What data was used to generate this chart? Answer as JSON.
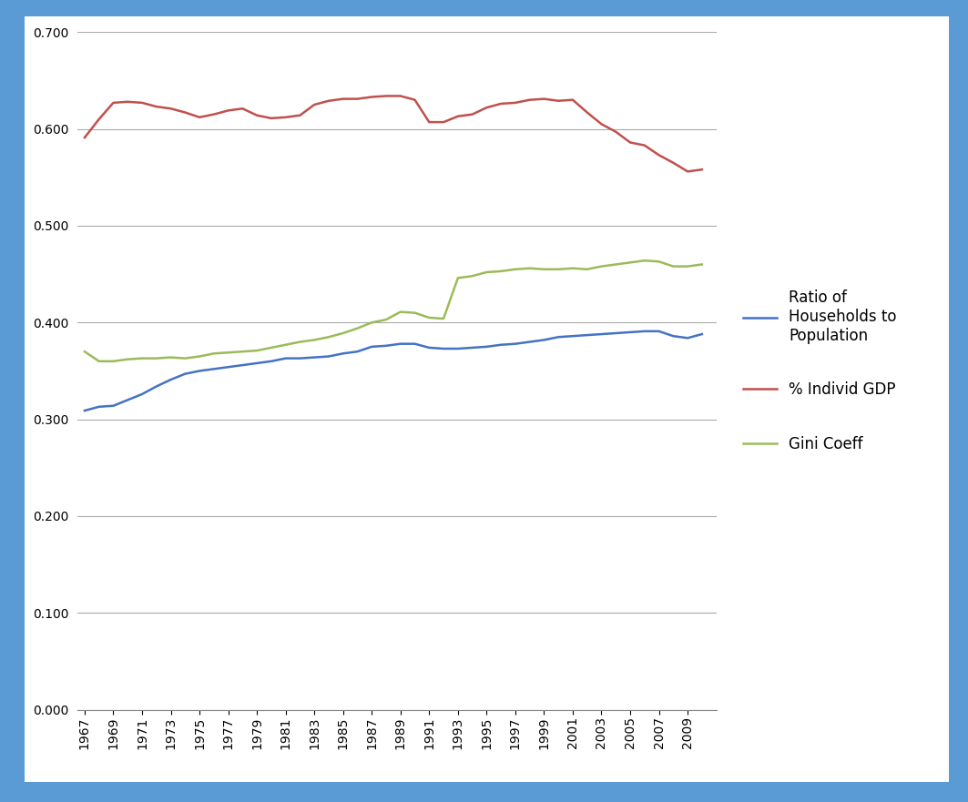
{
  "years": [
    1967,
    1968,
    1969,
    1970,
    1971,
    1972,
    1973,
    1974,
    1975,
    1976,
    1977,
    1978,
    1979,
    1980,
    1981,
    1982,
    1983,
    1984,
    1985,
    1986,
    1987,
    1988,
    1989,
    1990,
    1991,
    1992,
    1993,
    1994,
    1995,
    1996,
    1997,
    1998,
    1999,
    2000,
    2001,
    2002,
    2003,
    2004,
    2005,
    2006,
    2007,
    2008,
    2009,
    2010
  ],
  "ratio_households": [
    0.309,
    0.313,
    0.314,
    0.32,
    0.326,
    0.334,
    0.341,
    0.347,
    0.35,
    0.352,
    0.354,
    0.356,
    0.358,
    0.36,
    0.363,
    0.363,
    0.364,
    0.365,
    0.368,
    0.37,
    0.375,
    0.376,
    0.378,
    0.378,
    0.374,
    0.373,
    0.373,
    0.374,
    0.375,
    0.377,
    0.378,
    0.38,
    0.382,
    0.385,
    0.386,
    0.387,
    0.388,
    0.389,
    0.39,
    0.391,
    0.391,
    0.386,
    0.384,
    0.388
  ],
  "pct_individ_gdp": [
    0.591,
    0.61,
    0.627,
    0.628,
    0.627,
    0.623,
    0.621,
    0.617,
    0.612,
    0.615,
    0.619,
    0.621,
    0.614,
    0.611,
    0.612,
    0.614,
    0.625,
    0.629,
    0.631,
    0.631,
    0.633,
    0.634,
    0.634,
    0.63,
    0.607,
    0.607,
    0.613,
    0.615,
    0.622,
    0.626,
    0.627,
    0.63,
    0.631,
    0.629,
    0.63,
    0.617,
    0.605,
    0.597,
    0.586,
    0.583,
    0.573,
    0.565,
    0.556,
    0.558
  ],
  "gini_coeff": [
    0.37,
    0.36,
    0.36,
    0.362,
    0.363,
    0.363,
    0.364,
    0.363,
    0.365,
    0.368,
    0.369,
    0.37,
    0.371,
    0.374,
    0.377,
    0.38,
    0.382,
    0.385,
    0.389,
    0.394,
    0.4,
    0.403,
    0.411,
    0.41,
    0.405,
    0.404,
    0.446,
    0.448,
    0.452,
    0.453,
    0.455,
    0.456,
    0.455,
    0.455,
    0.456,
    0.455,
    0.458,
    0.46,
    0.462,
    0.464,
    0.463,
    0.458,
    0.458,
    0.46
  ],
  "line_color_households": "#4472C4",
  "line_color_gdp": "#C0504D",
  "line_color_gini": "#9BBB59",
  "background_outer": "#5B9BD5",
  "background_inner": "#FFFFFF",
  "ylim": [
    0.0,
    0.7
  ],
  "yticks": [
    0.0,
    0.1,
    0.2,
    0.3,
    0.4,
    0.5,
    0.6,
    0.7
  ],
  "legend_labels": [
    "Ratio of\nHouseholds to\nPopulation",
    "% Individ GDP",
    "Gini Coeff"
  ],
  "xlabel": "",
  "ylabel": "",
  "border_width": 14
}
